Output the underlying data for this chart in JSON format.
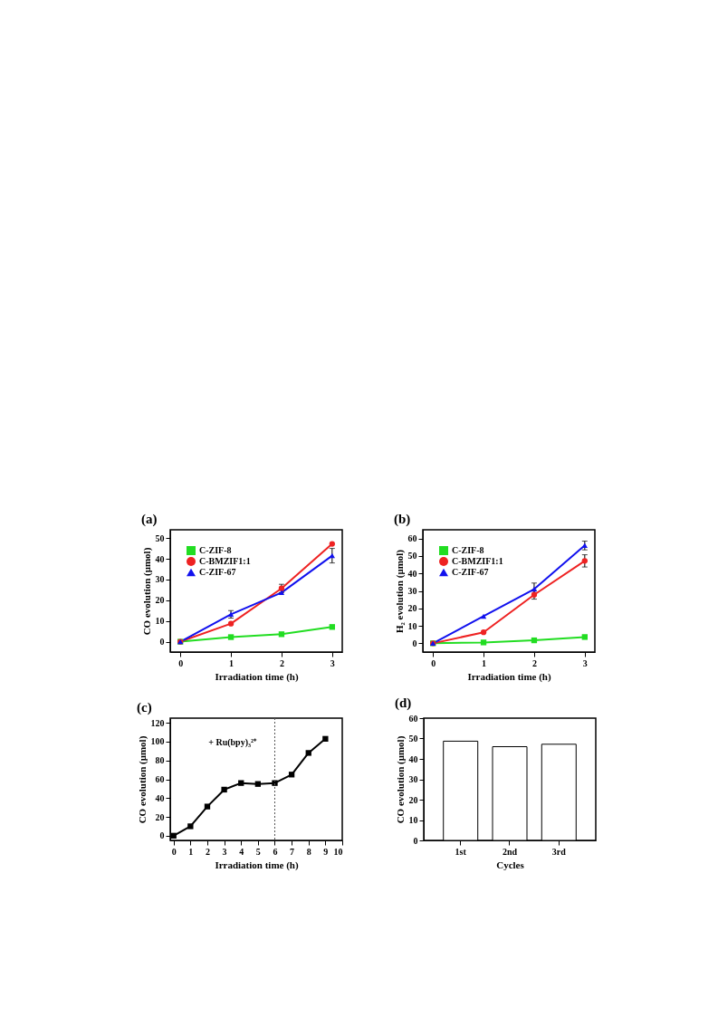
{
  "chart_data": [
    {
      "type": "line",
      "title": "(a)",
      "xlabel": "Irradiation time (h)",
      "ylabel": "CO evolution (μmol)",
      "x": [
        0,
        1,
        2,
        3
      ],
      "xlim": [
        -0.2,
        3.2
      ],
      "xticks": [
        0,
        1,
        2,
        3
      ],
      "ylim": [
        -5,
        54
      ],
      "yticks": [
        0,
        10,
        20,
        30,
        40,
        50
      ],
      "legend": "top left",
      "grid": false,
      "line_style": "solid",
      "series": [
        {
          "name": "C-ZIF-8",
          "color": "#22dd22",
          "marker": "square",
          "values": [
            0,
            2.2,
            3.6,
            7.1
          ]
        },
        {
          "name": "C-BMZIF1:1",
          "color": "#ee2222",
          "marker": "circle",
          "values": [
            0,
            8.7,
            25.7,
            47.2
          ],
          "errors": [
            null,
            null,
            2,
            null
          ]
        },
        {
          "name": "C-ZIF-67",
          "color": "#1111ee",
          "marker": "triangle",
          "values": [
            0,
            13.2,
            23.7,
            41.5
          ],
          "errors": [
            null,
            1.8,
            null,
            3.5
          ]
        }
      ]
    },
    {
      "type": "line",
      "title": "(b)",
      "xlabel": "Irradiation time (h)",
      "ylabel": "H₂ evolution (μmol)",
      "x": [
        0,
        1,
        2,
        3
      ],
      "xlim": [
        -0.2,
        3.2
      ],
      "xticks": [
        0,
        1,
        2,
        3
      ],
      "ylim": [
        -5,
        65
      ],
      "yticks": [
        0,
        10,
        20,
        30,
        40,
        50,
        60
      ],
      "legend": "top left",
      "grid": false,
      "line_style": "solid",
      "series": [
        {
          "name": "C-ZIF-8",
          "color": "#22dd22",
          "marker": "square",
          "values": [
            0,
            0.5,
            1.7,
            3.6
          ]
        },
        {
          "name": "C-BMZIF1:1",
          "color": "#ee2222",
          "marker": "circle",
          "values": [
            0,
            6.3,
            27.8,
            47.2
          ],
          "errors": [
            null,
            null,
            2.5,
            3.5
          ]
        },
        {
          "name": "C-ZIF-67",
          "color": "#1111ee",
          "marker": "triangle",
          "values": [
            0,
            15.5,
            31,
            56
          ],
          "errors": [
            null,
            null,
            3.5,
            2.5
          ]
        }
      ]
    },
    {
      "type": "line",
      "title": "(c)",
      "xlabel": "Irradiation time (h)",
      "ylabel": "CO evolution (μmol)",
      "x": [
        0,
        1,
        2,
        3,
        4,
        5,
        6,
        7,
        8,
        9
      ],
      "xlim": [
        -0.2,
        10
      ],
      "xticks": [
        0,
        1,
        2,
        3,
        4,
        5,
        6,
        7,
        8,
        9,
        10
      ],
      "ylim": [
        -5,
        125
      ],
      "yticks": [
        0,
        20,
        40,
        60,
        80,
        100,
        120
      ],
      "grid": false,
      "line_style": "solid",
      "marker": "square",
      "series": [
        {
          "color": "#000000",
          "values": [
            0,
            10,
            31,
            49,
            56,
            55,
            56,
            65,
            88,
            103
          ]
        }
      ],
      "ref_lines": [
        {
          "axis": "x",
          "value": 6,
          "color": "#555555",
          "line_style": "dotted"
        }
      ],
      "annotations": [
        "+ Ru(bpy)₃²⁺"
      ]
    },
    {
      "type": "bar",
      "title": "(d)",
      "xlabel": "Cycles",
      "ylabel": "CO evolution (μmol)",
      "categories": [
        "1st",
        "2nd",
        "3rd"
      ],
      "values": [
        48.7,
        46,
        47.2
      ],
      "color": "#ffffff",
      "ylim": [
        0,
        60
      ],
      "yticks": [
        0,
        10,
        20,
        30,
        40,
        50,
        60
      ],
      "grid": false
    }
  ]
}
